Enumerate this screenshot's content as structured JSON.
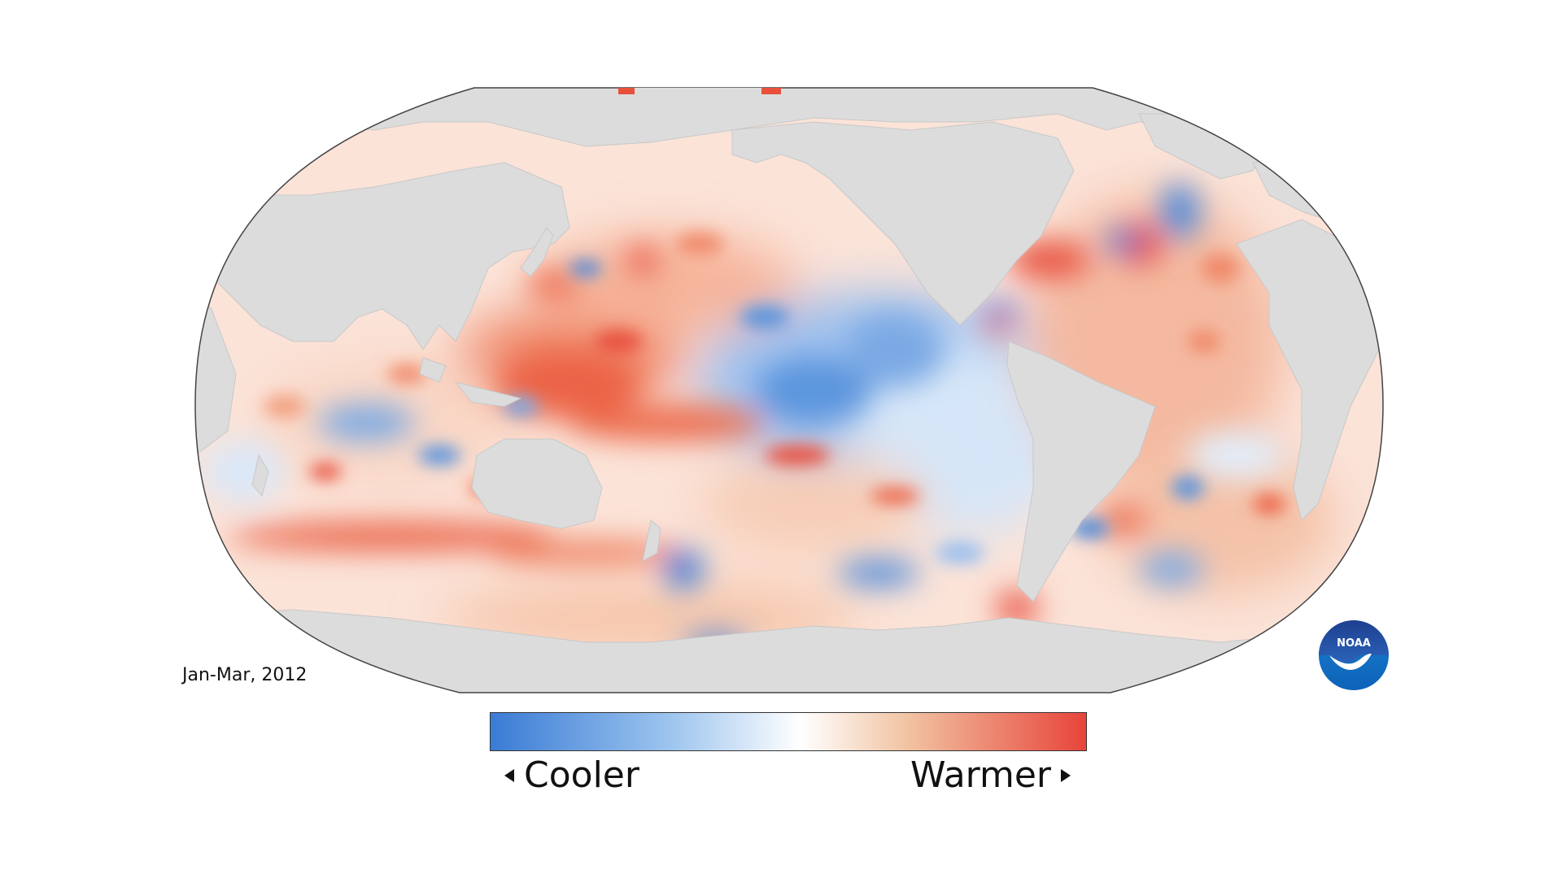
{
  "map": {
    "period": "Jan-Mar, 2012",
    "projection": "Robinson, Pacific-centered",
    "land_color": "#dcdcdc",
    "ocean_neutral_color": "#ffffff"
  },
  "legend": {
    "cool_label": "Cooler",
    "warm_label": "Warmer",
    "cool_color": "#3a7bd5",
    "mid_color": "#ffffff",
    "warm_color": "#e8443a"
  },
  "logo": {
    "text": "NOAA",
    "icon": "noaa-logo-icon"
  }
}
